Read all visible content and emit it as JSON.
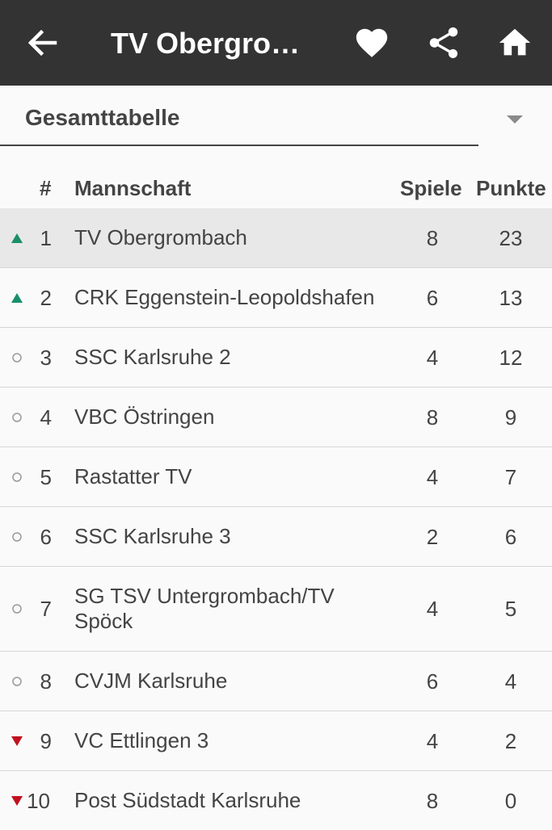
{
  "appbar": {
    "title": "TV Obergrombach",
    "colors": {
      "background": "#333333",
      "foreground": "#ffffff"
    },
    "icons": [
      "arrow-left-icon",
      "heart-icon",
      "share-icon",
      "home-icon"
    ]
  },
  "dropdown": {
    "selected": "Gesamttabelle"
  },
  "table": {
    "headers": {
      "rank": "#",
      "team": "Mannschaft",
      "games": "Spiele",
      "points": "Punkte"
    },
    "rows": [
      {
        "trend": "up",
        "rank": "1",
        "team": "TV Obergrombach",
        "games": "8",
        "points": "23"
      },
      {
        "trend": "up",
        "rank": "2",
        "team": "CRK Eggenstein-Leopoldshafen",
        "games": "6",
        "points": "13"
      },
      {
        "trend": "neutral",
        "rank": "3",
        "team": "SSC Karlsruhe 2",
        "games": "4",
        "points": "12"
      },
      {
        "trend": "neutral",
        "rank": "4",
        "team": "VBC Östringen",
        "games": "8",
        "points": "9"
      },
      {
        "trend": "neutral",
        "rank": "5",
        "team": "Rastatter TV",
        "games": "4",
        "points": "7"
      },
      {
        "trend": "neutral",
        "rank": "6",
        "team": "SSC Karlsruhe 3",
        "games": "2",
        "points": "6"
      },
      {
        "trend": "neutral",
        "rank": "7",
        "team": "SG TSV Untergrombach/TV Spöck",
        "games": "4",
        "points": "5"
      },
      {
        "trend": "neutral",
        "rank": "8",
        "team": "CVJM Karlsruhe",
        "games": "6",
        "points": "4"
      },
      {
        "trend": "down",
        "rank": "9",
        "team": "VC Ettlingen 3",
        "games": "4",
        "points": "2"
      },
      {
        "trend": "down",
        "rank": "10",
        "team": "Post Südstadt Karlsruhe",
        "games": "8",
        "points": "0"
      }
    ],
    "trend_colors": {
      "up": "#1a8f6b",
      "neutral": "#999999",
      "down": "#c0121e"
    }
  }
}
